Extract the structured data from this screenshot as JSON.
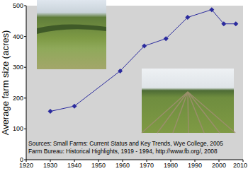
{
  "chart_data": {
    "type": "line",
    "y_label": "Average farm size (acres)",
    "x": [
      1930,
      1940,
      1959,
      1969,
      1978,
      1987,
      1997,
      2002,
      2007
    ],
    "values": [
      157,
      174,
      288,
      369,
      393,
      462,
      487,
      441,
      441
    ],
    "color": "#2b2b9e",
    "marker": "diamond",
    "xlim": [
      1920,
      2010
    ],
    "xticks": [
      1920,
      1930,
      1940,
      1950,
      1960,
      1970,
      1980,
      1990,
      2000,
      2010
    ],
    "ylim": [
      0,
      500
    ],
    "yticks": [
      0,
      100,
      200,
      300,
      400,
      500
    ],
    "grid": false,
    "annotations": [
      "Sources: Small Farms: Current Status and Key Trends, Wye College, 2005",
      "Farm Bureau: Historical Highlights, 1919 - 1994, http://www.fb.org/, 2008"
    ]
  }
}
